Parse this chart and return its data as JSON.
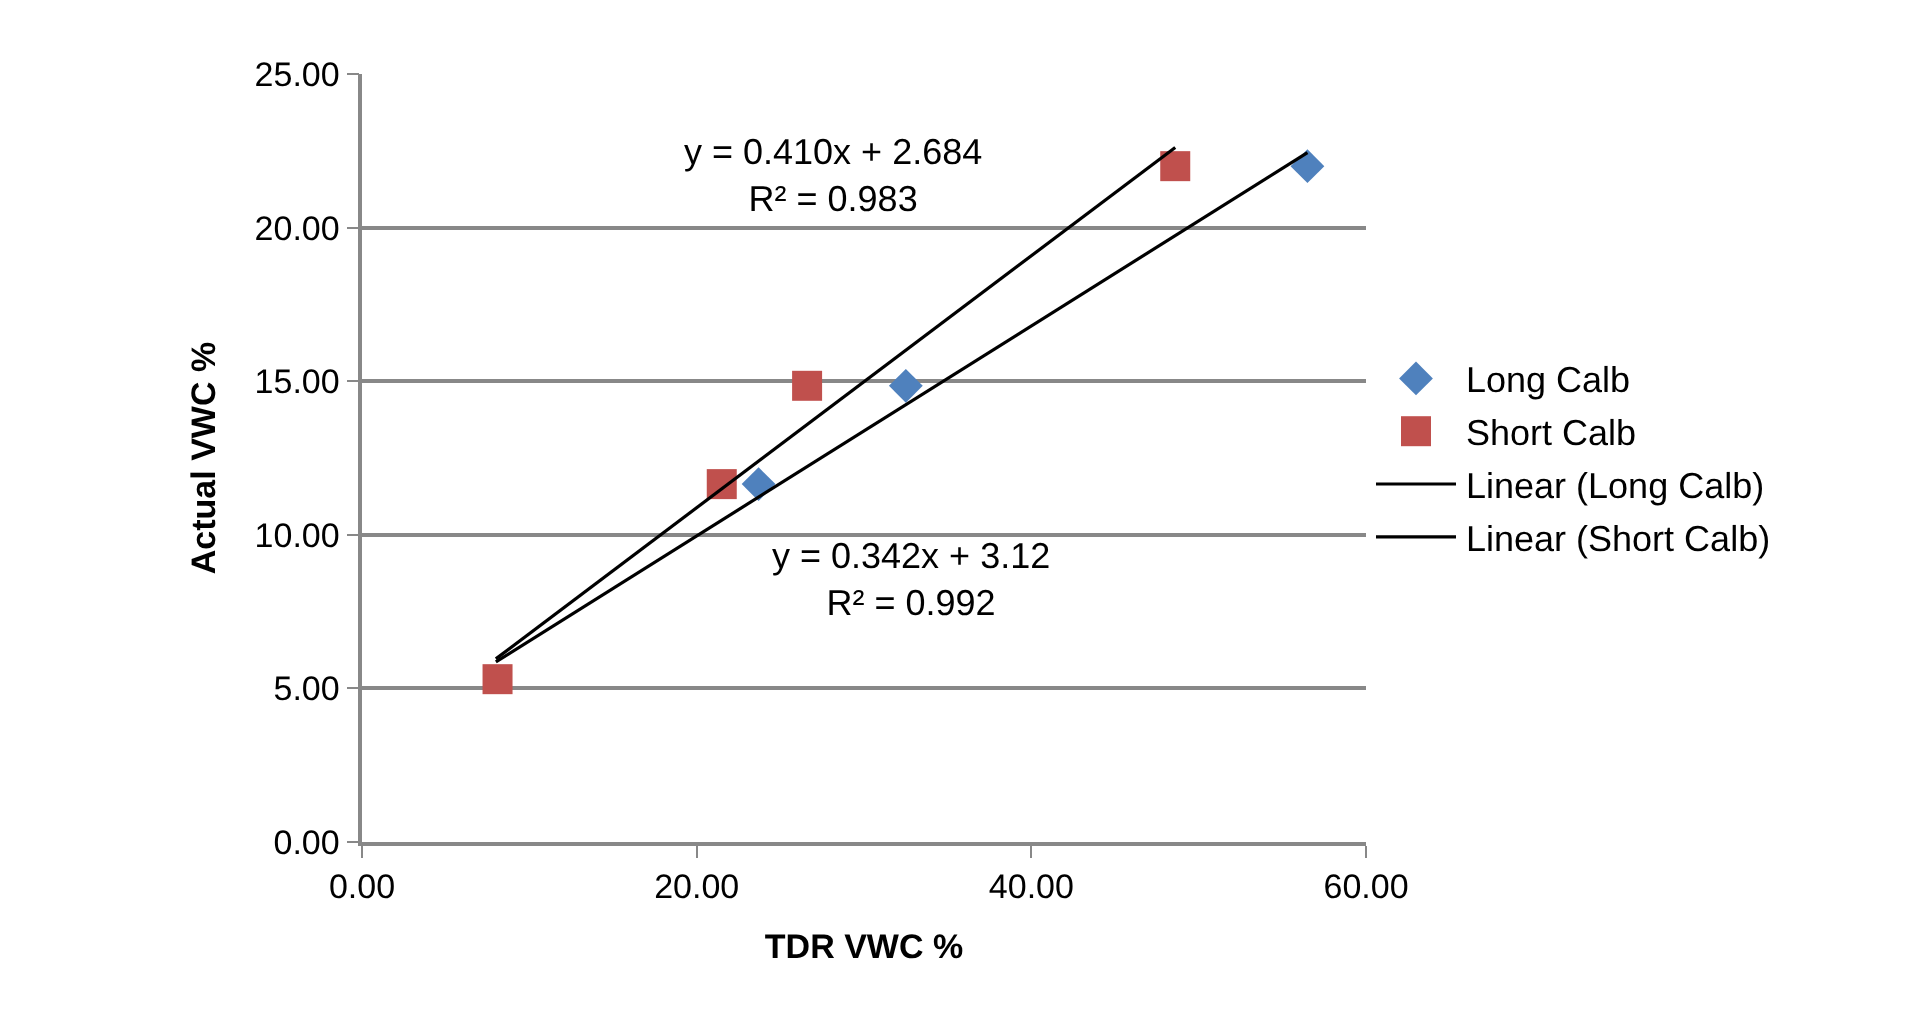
{
  "chart_data": {
    "type": "scatter",
    "xlabel": "TDR VWC %",
    "ylabel": "Actual VWC %",
    "xlim": [
      0,
      60
    ],
    "xticks": [
      {
        "value": 0,
        "label": "0.00"
      },
      {
        "value": 20,
        "label": "20.00"
      },
      {
        "value": 40,
        "label": "40.00"
      },
      {
        "value": 60,
        "label": "60.00"
      }
    ],
    "ylim": [
      0,
      25
    ],
    "yticks": [
      {
        "value": 0,
        "label": "0.00"
      },
      {
        "value": 5,
        "label": "5.00"
      },
      {
        "value": 10,
        "label": "10.00"
      },
      {
        "value": 15,
        "label": "15.00"
      },
      {
        "value": 20,
        "label": "20.00"
      },
      {
        "value": 25,
        "label": "25.00"
      }
    ],
    "grid": "y",
    "legend": "right",
    "series": [
      {
        "name": "Long Calb",
        "marker": "diamond",
        "color": "#4f81bd",
        "x": [
          23.7,
          32.5,
          56.5
        ],
        "values": [
          11.65,
          14.85,
          22.0
        ]
      },
      {
        "name": "Short Calb",
        "marker": "square",
        "color": "#c0504d",
        "x": [
          8.1,
          21.5,
          26.6,
          48.6
        ],
        "values": [
          5.3,
          11.65,
          14.85,
          22.0
        ]
      },
      {
        "name": "Linear (Long Calb)",
        "type": "line",
        "marker": "none",
        "line_style": "solid",
        "color": "#000000",
        "x": [
          8.0,
          56.5
        ],
        "values": [
          5.86,
          22.44
        ]
      },
      {
        "name": "Linear (Short Calb)",
        "type": "line",
        "marker": "none",
        "line_style": "solid",
        "color": "#000000",
        "x": [
          8.0,
          48.6
        ],
        "values": [
          5.96,
          22.61
        ]
      }
    ],
    "annotations": [
      "y = 0.410x + 2.684\nR² = 0.983",
      "y = 0.342x + 3.12\nR² = 0.992"
    ]
  }
}
